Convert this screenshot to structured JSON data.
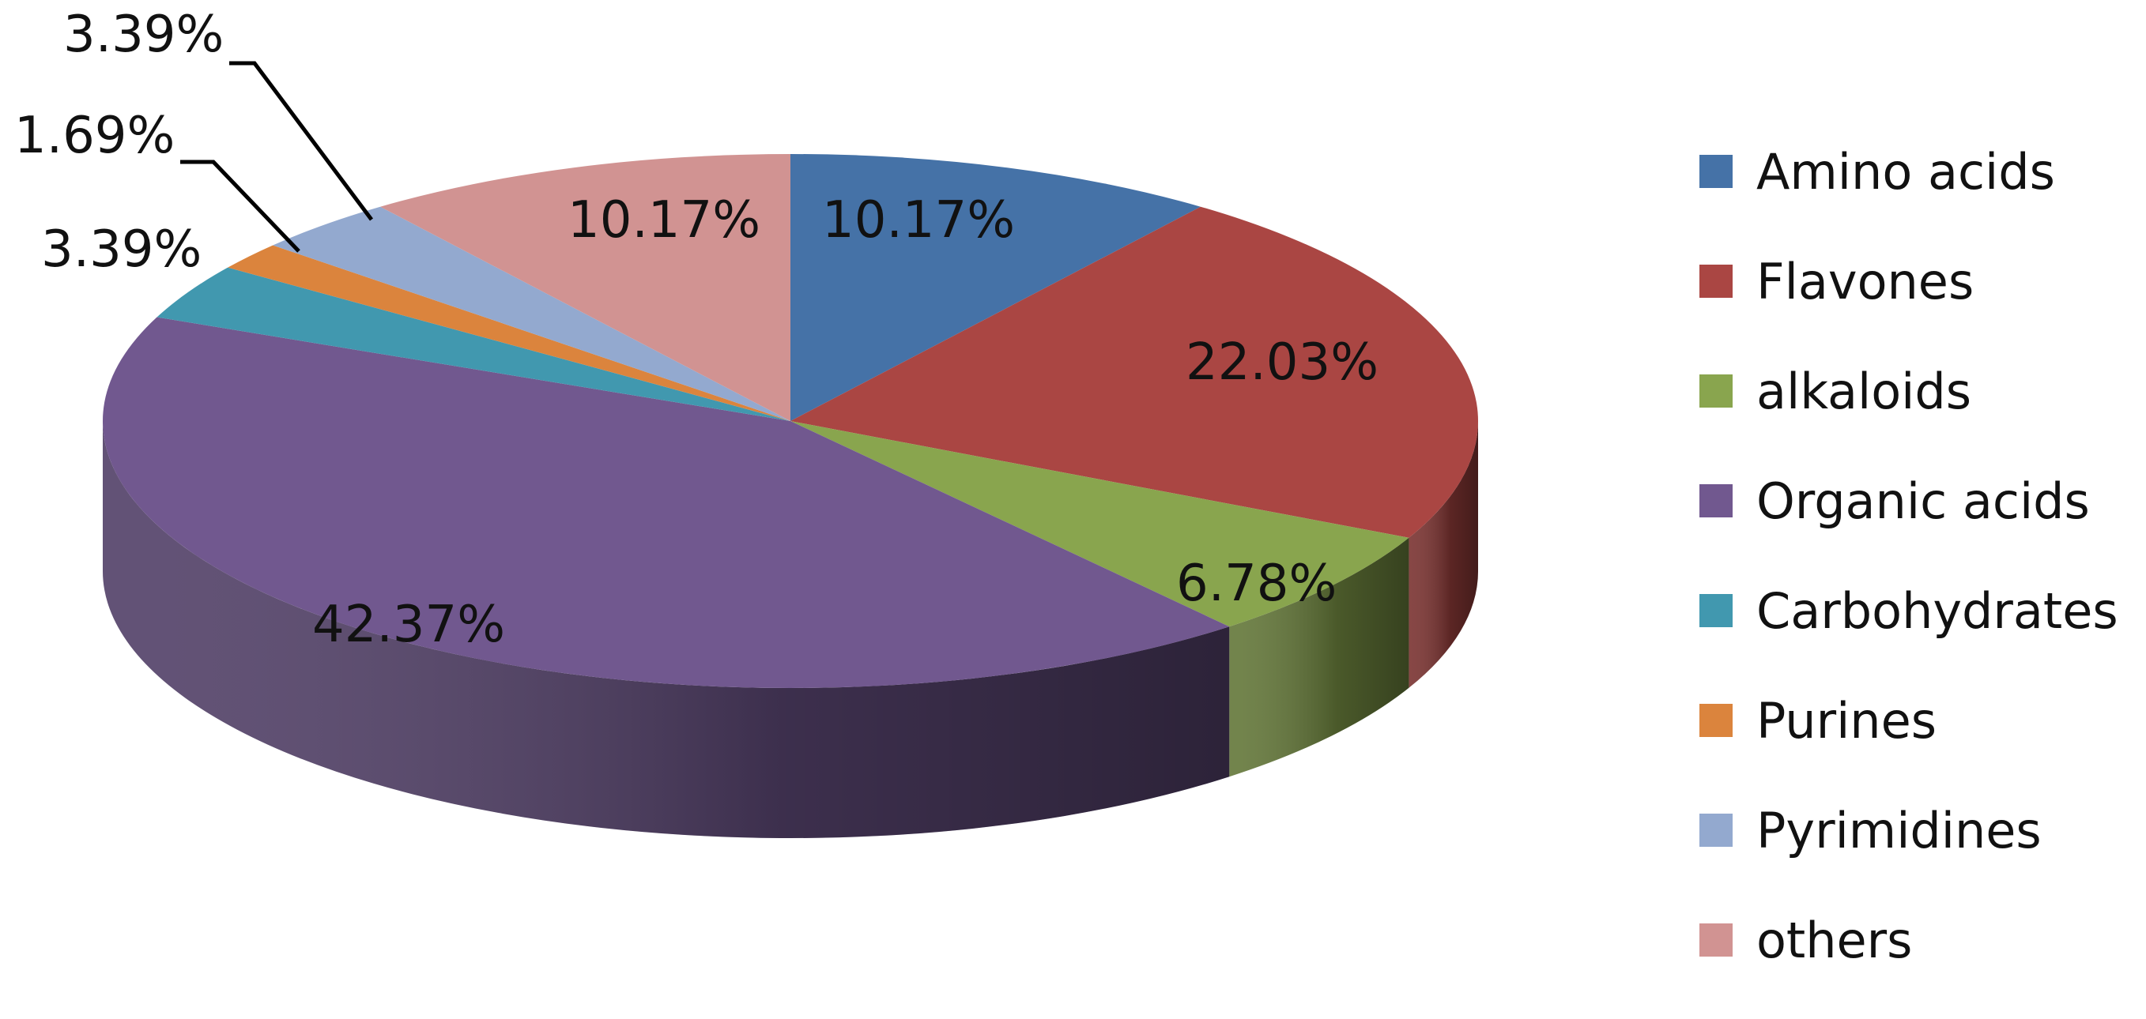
{
  "chart_data": {
    "type": "pie",
    "title": "",
    "three_d": true,
    "legend_position": "right",
    "series": [
      {
        "name": "Amino acids",
        "value": 10.17,
        "label": "10.17%",
        "color": "#4572A7"
      },
      {
        "name": "Flavones",
        "value": 22.03,
        "label": "22.03%",
        "color": "#AA4643"
      },
      {
        "name": "alkaloids",
        "value": 6.78,
        "label": "6.78%",
        "color": "#89A54E"
      },
      {
        "name": "Organic acids",
        "value": 42.37,
        "label": "42.37%",
        "color": "#71588F"
      },
      {
        "name": "Carbohydrates",
        "value": 3.39,
        "label": "3.39%",
        "color": "#4198AF"
      },
      {
        "name": "Purines",
        "value": 1.69,
        "label": "1.69%",
        "color": "#DB843D"
      },
      {
        "name": "Pyrimidines",
        "value": 3.39,
        "label": "3.39%",
        "color": "#93A9CF"
      },
      {
        "name": "others",
        "value": 10.17,
        "label": "10.17%",
        "color": "#D19392"
      }
    ]
  }
}
